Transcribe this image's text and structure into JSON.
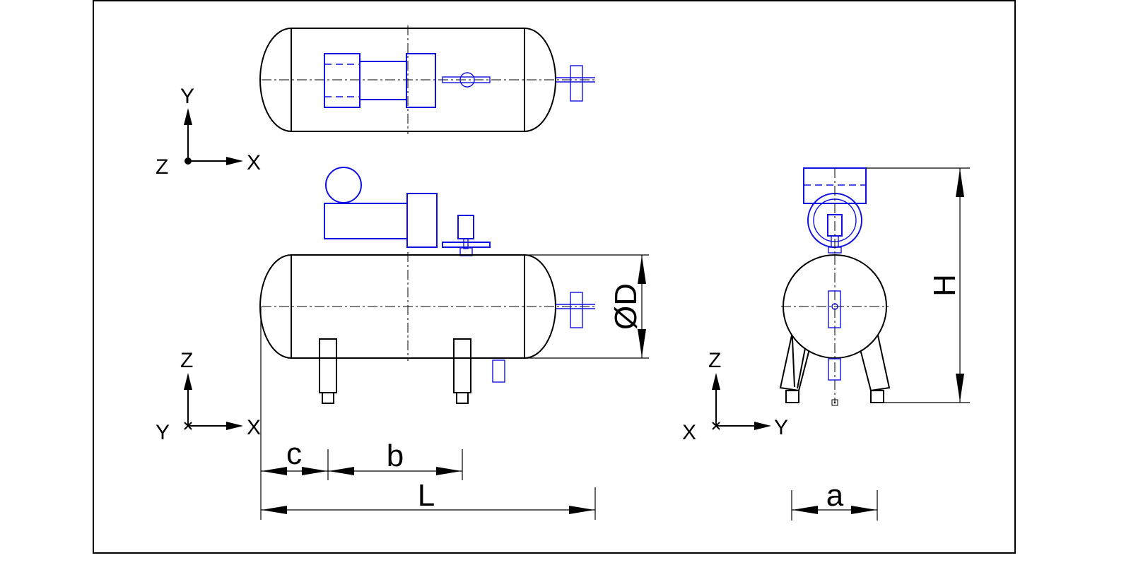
{
  "views": {
    "top": {
      "axes": {
        "horizontal": "X",
        "vertical": "Y",
        "normal": "Z"
      }
    },
    "side": {
      "axes": {
        "horizontal": "X",
        "vertical": "Z",
        "normal": "Y"
      }
    },
    "end": {
      "axes": {
        "horizontal": "Y",
        "vertical": "Z",
        "normal": "X"
      }
    }
  },
  "dimensions": {
    "c": "c",
    "b": "b",
    "L": "L",
    "a": "a",
    "diameter": "ØD",
    "height": "H"
  },
  "colors": {
    "outline": "#000000",
    "equipment": "#1010e0",
    "background": "#ffffff"
  }
}
